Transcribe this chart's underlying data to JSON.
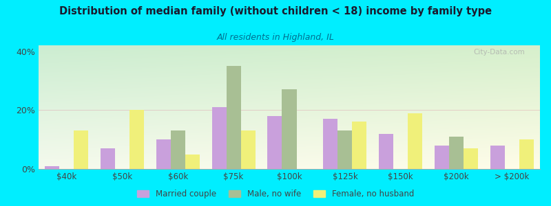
{
  "title": "Distribution of median family (without children < 18) income by family type",
  "subtitle": "All residents in Highland, IL",
  "categories": [
    "$40k",
    "$50k",
    "$60k",
    "$75k",
    "$100k",
    "$125k",
    "$150k",
    "$200k",
    "> $200k"
  ],
  "married_couple": [
    1,
    7,
    10,
    21,
    18,
    17,
    12,
    8,
    8
  ],
  "male_no_wife": [
    0,
    0,
    13,
    35,
    27,
    13,
    0,
    11,
    0
  ],
  "female_no_husband": [
    13,
    20,
    5,
    13,
    0,
    16,
    19,
    7,
    10
  ],
  "married_color": "#c9a0dc",
  "male_color": "#a8bf94",
  "female_color": "#f0f07a",
  "background_outer": "#00eeff",
  "title_color": "#1a1a2e",
  "subtitle_color": "#007090",
  "axis_color": "#444444",
  "ylim": [
    0,
    42
  ],
  "yticks": [
    0,
    20,
    40
  ],
  "ytick_labels": [
    "0%",
    "20%",
    "40%"
  ],
  "watermark": "City-Data.com",
  "bar_width": 0.26
}
